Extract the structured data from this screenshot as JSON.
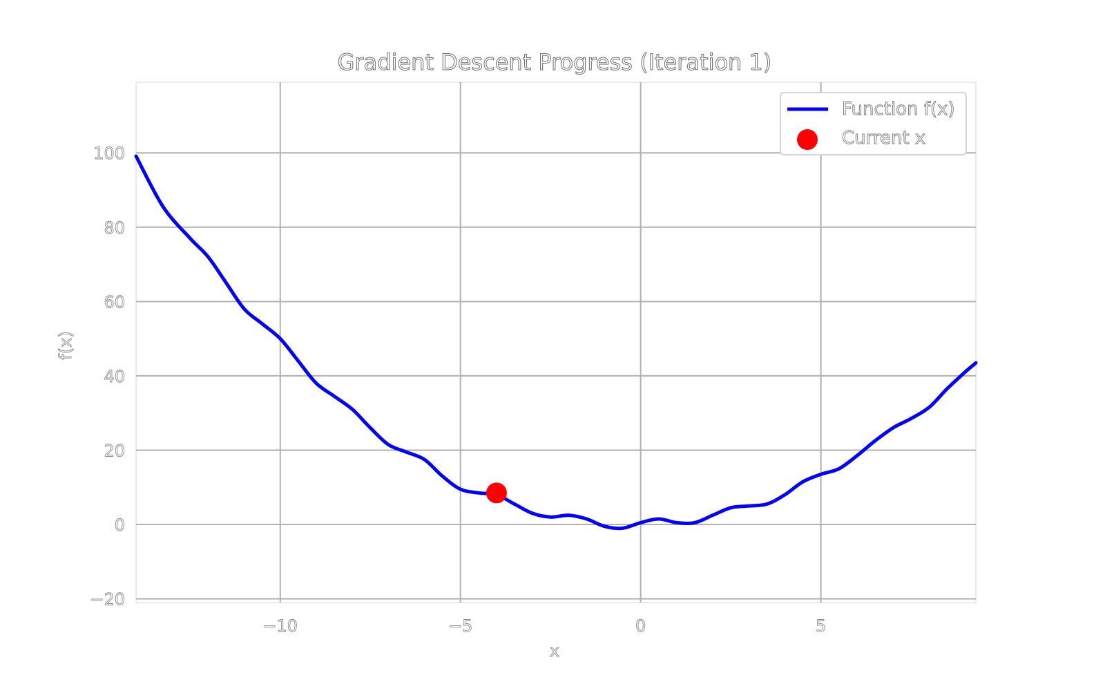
{
  "chart_data": {
    "type": "line",
    "title": "Gradient Descent Progress (Iteration 1)",
    "xlabel": "x",
    "ylabel": "f(x)",
    "xlim": [
      -14,
      9.3
    ],
    "ylim": [
      -21,
      119
    ],
    "xticks": [
      -10,
      -5,
      0,
      5
    ],
    "xtick_labels": [
      "−10",
      "−5",
      "0",
      "5"
    ],
    "yticks": [
      -20,
      0,
      20,
      40,
      60,
      80,
      100
    ],
    "ytick_labels": [
      "−20",
      "0",
      "20",
      "40",
      "60",
      "80",
      "100"
    ],
    "grid": true,
    "legend_position": "top-right",
    "series": [
      {
        "name": "Function f(x)",
        "kind": "line",
        "color": "#0000ff",
        "x": [
          -14,
          -13.25,
          -12.5,
          -12,
          -11.5,
          -11,
          -10.5,
          -10,
          -9.5,
          -9,
          -8.5,
          -8,
          -7.5,
          -7,
          -6.5,
          -6,
          -5.5,
          -5,
          -4.5,
          -4,
          -3.5,
          -3,
          -2.5,
          -2,
          -1.5,
          -1,
          -0.5,
          0,
          0.5,
          1,
          1.5,
          2,
          2.5,
          3,
          3.5,
          4,
          4.5,
          5,
          5.5,
          6,
          6.5,
          7,
          7.5,
          8,
          8.5,
          9,
          9.3
        ],
        "y": [
          99.1,
          85.5,
          77,
          72,
          65,
          58,
          54,
          50,
          44,
          38,
          34.5,
          31,
          26,
          21.5,
          19.5,
          17.5,
          13,
          9.5,
          8.5,
          8,
          5.5,
          3,
          2,
          2.5,
          1.5,
          -0.5,
          -1,
          0.5,
          1.5,
          0.5,
          0.5,
          2.5,
          4.5,
          5,
          5.5,
          8,
          11.5,
          13.5,
          15,
          18.5,
          22.5,
          26,
          28.5,
          31.5,
          36.5,
          41,
          43.5
        ]
      },
      {
        "name": "Current x",
        "kind": "scatter",
        "color": "#ff0000",
        "x": [
          -4
        ],
        "y": [
          8.5
        ]
      }
    ]
  }
}
